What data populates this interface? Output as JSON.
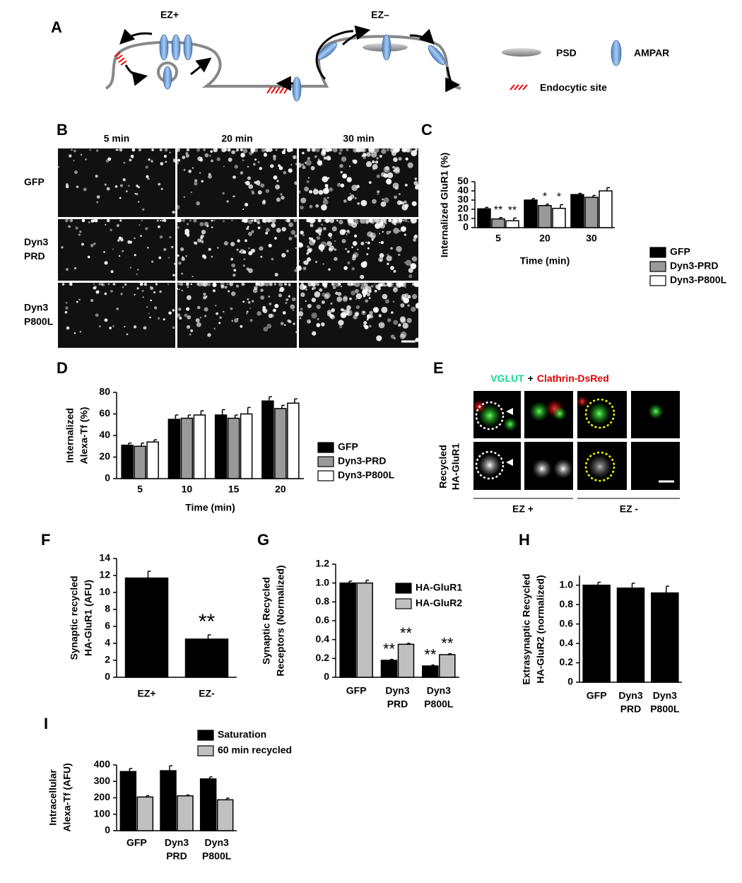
{
  "panel_labels": [
    "A",
    "B",
    "C",
    "D",
    "E",
    "F",
    "G",
    "H",
    "I"
  ],
  "diagram": {
    "ez_plus": "EZ+",
    "ez_minus": "EZ–",
    "legend": [
      "PSD",
      "AMPAR",
      "Endocytic site"
    ]
  },
  "micrographs": {
    "columns": [
      "5 min",
      "20 min",
      "30 min"
    ],
    "rows": [
      [
        "GFP"
      ],
      [
        "Dyn3",
        "PRD"
      ],
      [
        "Dyn3",
        "P800L"
      ]
    ]
  },
  "colocalization": {
    "title": [
      "VGLUT",
      "+",
      "Clathrin-DsRed"
    ],
    "row_label": [
      "Recycled",
      "HA-GluR1"
    ],
    "groups": [
      "EZ +",
      "EZ -"
    ]
  },
  "chart_data": [
    {
      "type": "bar",
      "ylabel": [
        "Internalized GluR1 (%)"
      ],
      "xlabel": "Time (min)",
      "categories": [
        "5",
        "20",
        "30"
      ],
      "series": [
        {
          "name": "GFP",
          "color": "#000000",
          "values": [
            20.5,
            30,
            36
          ],
          "errors": [
            1.5,
            1.5,
            1.3
          ]
        },
        {
          "name": "Dyn3-PRD",
          "color": "#999999",
          "values": [
            9.5,
            24,
            33
          ],
          "errors": [
            1.5,
            1.5,
            2
          ],
          "annotations": [
            "**",
            "*",
            null
          ]
        },
        {
          "name": "Dyn3-P800L",
          "color": "#ffffff",
          "values": [
            7.5,
            21,
            40
          ],
          "errors": [
            3,
            4,
            3.5
          ],
          "annotations": [
            "**",
            "*",
            null
          ]
        }
      ],
      "ylim": [
        0,
        50
      ],
      "yticks": [
        0,
        10,
        20,
        30,
        40,
        50
      ]
    },
    {
      "type": "bar",
      "ylabel": [
        "Internalized",
        "Alexa-Tf (%)"
      ],
      "xlabel": "Time (min)",
      "categories": [
        "5",
        "10",
        "15",
        "20"
      ],
      "series": [
        {
          "name": "GFP",
          "color": "#000000",
          "values": [
            31,
            55,
            59,
            72
          ],
          "errors": [
            2,
            4,
            5,
            4
          ]
        },
        {
          "name": "Dyn3-PRD",
          "color": "#999999",
          "values": [
            30,
            56,
            56,
            65
          ],
          "errors": [
            3,
            3,
            3,
            3
          ]
        },
        {
          "name": "Dyn3-P800L",
          "color": "#ffffff",
          "values": [
            34,
            59,
            60,
            70
          ],
          "errors": [
            2,
            4,
            6,
            4
          ]
        }
      ],
      "ylim": [
        0,
        80
      ],
      "yticks": [
        0,
        20,
        40,
        60,
        80
      ]
    },
    {
      "type": "bar",
      "ylabel": [
        "Synaptic recycled",
        "HA-GluR1 (AFU)"
      ],
      "categories": [
        "EZ+",
        "EZ-"
      ],
      "values": [
        11.7,
        4.5
      ],
      "errors": [
        0.8,
        0.5
      ],
      "annotations": [
        null,
        "**"
      ],
      "color": "#000000",
      "ylim": [
        0,
        14
      ],
      "yticks": [
        0,
        2,
        4,
        6,
        8,
        10,
        12,
        14
      ]
    },
    {
      "type": "bar",
      "ylabel": [
        "Synaptic Recycled",
        "Receptors (Normalized)"
      ],
      "categories": [
        [
          "GFP"
        ],
        [
          "Dyn3",
          "PRD"
        ],
        [
          "Dyn3",
          "P800L"
        ]
      ],
      "series": [
        {
          "name": "HA-GluR1",
          "color": "#000000",
          "values": [
            1.0,
            0.18,
            0.12
          ],
          "errors": [
            0.02,
            0.01,
            0.01
          ],
          "annotations": [
            null,
            "**",
            "**"
          ]
        },
        {
          "name": "HA-GluR2",
          "color": "#c0c0c0",
          "values": [
            1.0,
            0.35,
            0.24
          ],
          "errors": [
            0.03,
            0.01,
            0.01
          ],
          "annotations": [
            null,
            "**",
            "**"
          ]
        }
      ],
      "ylim": [
        0,
        1.2
      ],
      "yticks": [
        0,
        0.2,
        0.4,
        0.6,
        0.8,
        {
          "value": 1,
          "label": "1.0"
        },
        1.2
      ]
    },
    {
      "type": "bar",
      "ylabel": [
        "Extrasynaptic Recycled",
        "HA-GluR2 (normalized)"
      ],
      "categories": [
        [
          "GFP"
        ],
        [
          "Dyn3",
          "PRD"
        ],
        [
          "Dyn3",
          "P800L"
        ]
      ],
      "values": [
        1.0,
        0.97,
        0.92
      ],
      "errors": [
        0.03,
        0.05,
        0.07
      ],
      "color": "#000000",
      "ylim": [
        0,
        1.1
      ],
      "yticks": [
        0,
        0.2,
        0.4,
        0.6,
        0.8,
        {
          "value": 1,
          "label": "1.0"
        }
      ]
    },
    {
      "type": "bar",
      "ylabel": [
        "Intracellular",
        "Alexa-Tf (AFU)"
      ],
      "categories": [
        [
          "GFP"
        ],
        [
          "Dyn3",
          "PRD"
        ],
        [
          "Dyn3",
          "P800L"
        ]
      ],
      "series": [
        {
          "name": "Saturation",
          "color": "#000000",
          "values": [
            360,
            365,
            315
          ],
          "errors": [
            18,
            30,
            12
          ]
        },
        {
          "name": "60 min recycled",
          "color": "#c0c0c0",
          "values": [
            205,
            212,
            188
          ],
          "errors": [
            8,
            5,
            10
          ]
        }
      ],
      "ylim": [
        0,
        400
      ],
      "yticks": [
        0,
        100,
        200,
        300,
        400
      ]
    }
  ]
}
